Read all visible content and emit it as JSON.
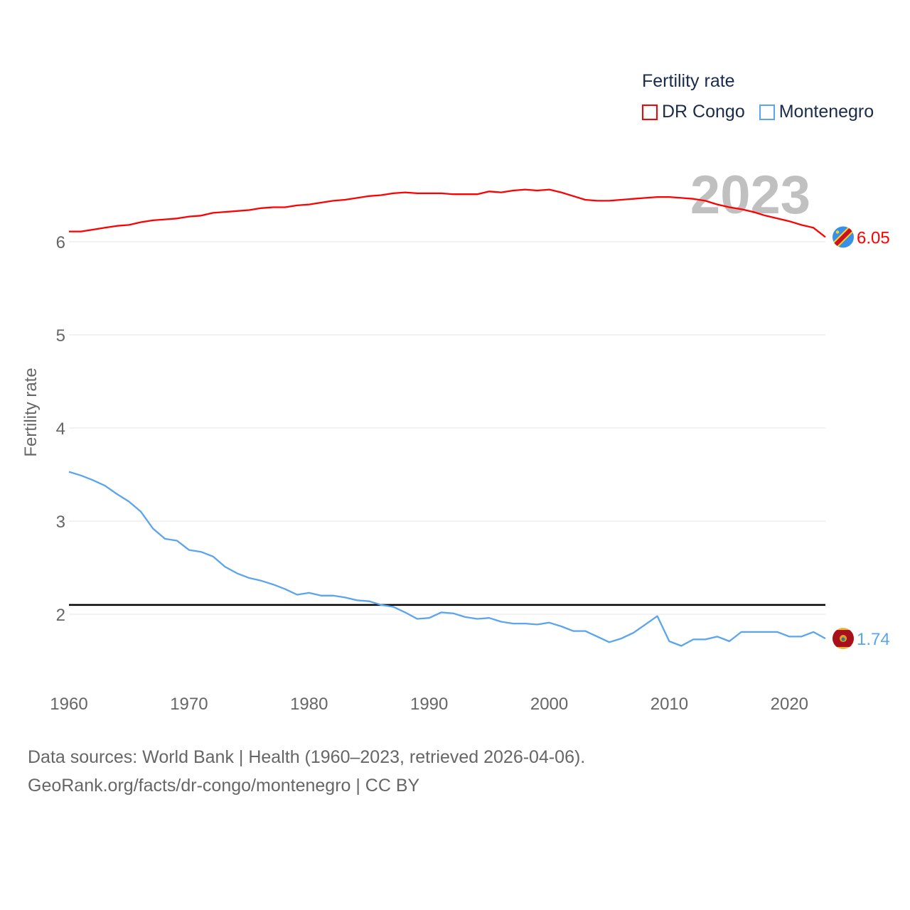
{
  "chart_data": {
    "type": "line",
    "title": "",
    "ylabel": "Fertility rate",
    "xlabel": "",
    "year_watermark": "2023",
    "xlim": [
      1960,
      2023
    ],
    "ylim": [
      1.5,
      6.8
    ],
    "x_ticks": [
      "1960",
      "1970",
      "1980",
      "1990",
      "2000",
      "2010",
      "2020"
    ],
    "y_ticks": [
      "2",
      "3",
      "4",
      "5",
      "6"
    ],
    "grid": true,
    "reference_line": 2.1,
    "legend": {
      "title": "Fertility rate",
      "placement": "top-right",
      "entries": [
        "DR Congo",
        "Montenegro"
      ]
    },
    "x": [
      1960,
      1961,
      1962,
      1963,
      1964,
      1965,
      1966,
      1967,
      1968,
      1969,
      1970,
      1971,
      1972,
      1973,
      1974,
      1975,
      1976,
      1977,
      1978,
      1979,
      1980,
      1981,
      1982,
      1983,
      1984,
      1985,
      1986,
      1987,
      1988,
      1989,
      1990,
      1991,
      1992,
      1993,
      1994,
      1995,
      1996,
      1997,
      1998,
      1999,
      2000,
      2001,
      2002,
      2003,
      2004,
      2005,
      2006,
      2007,
      2008,
      2009,
      2010,
      2011,
      2012,
      2013,
      2014,
      2015,
      2016,
      2017,
      2018,
      2019,
      2020,
      2021,
      2022,
      2023
    ],
    "series": [
      {
        "name": "DR Congo",
        "color": "#ff0000",
        "end_label": "6.05",
        "values": [
          6.11,
          6.11,
          6.13,
          6.15,
          6.17,
          6.18,
          6.21,
          6.23,
          6.24,
          6.25,
          6.27,
          6.28,
          6.31,
          6.32,
          6.33,
          6.34,
          6.36,
          6.37,
          6.37,
          6.39,
          6.4,
          6.42,
          6.44,
          6.45,
          6.47,
          6.49,
          6.5,
          6.52,
          6.53,
          6.52,
          6.52,
          6.52,
          6.51,
          6.51,
          6.51,
          6.54,
          6.53,
          6.55,
          6.56,
          6.55,
          6.56,
          6.53,
          6.49,
          6.45,
          6.44,
          6.44,
          6.45,
          6.46,
          6.47,
          6.48,
          6.48,
          6.47,
          6.46,
          6.44,
          6.4,
          6.37,
          6.35,
          6.32,
          6.28,
          6.25,
          6.22,
          6.18,
          6.15,
          6.05
        ]
      },
      {
        "name": "Montenegro",
        "color": "#5ba4ee",
        "end_label": "1.74",
        "values": [
          3.53,
          3.49,
          3.44,
          3.38,
          3.29,
          3.21,
          3.1,
          2.92,
          2.81,
          2.79,
          2.69,
          2.67,
          2.62,
          2.51,
          2.44,
          2.39,
          2.36,
          2.32,
          2.27,
          2.21,
          2.23,
          2.2,
          2.2,
          2.18,
          2.15,
          2.14,
          2.1,
          2.08,
          2.02,
          1.95,
          1.96,
          2.02,
          2.01,
          1.97,
          1.95,
          1.96,
          1.92,
          1.9,
          1.9,
          1.89,
          1.91,
          1.87,
          1.82,
          1.82,
          1.76,
          1.7,
          1.74,
          1.8,
          1.89,
          1.98,
          1.71,
          1.66,
          1.73,
          1.73,
          1.76,
          1.71,
          1.81,
          1.81,
          1.81,
          1.81,
          1.76,
          1.76,
          1.81,
          1.74
        ]
      }
    ]
  },
  "footer": {
    "line1": "Data sources: World Bank | Health (1960–2023, retrieved 2026-04-06).",
    "line2": "GeoRank.org/facts/dr-congo/montenegro | CC BY"
  }
}
